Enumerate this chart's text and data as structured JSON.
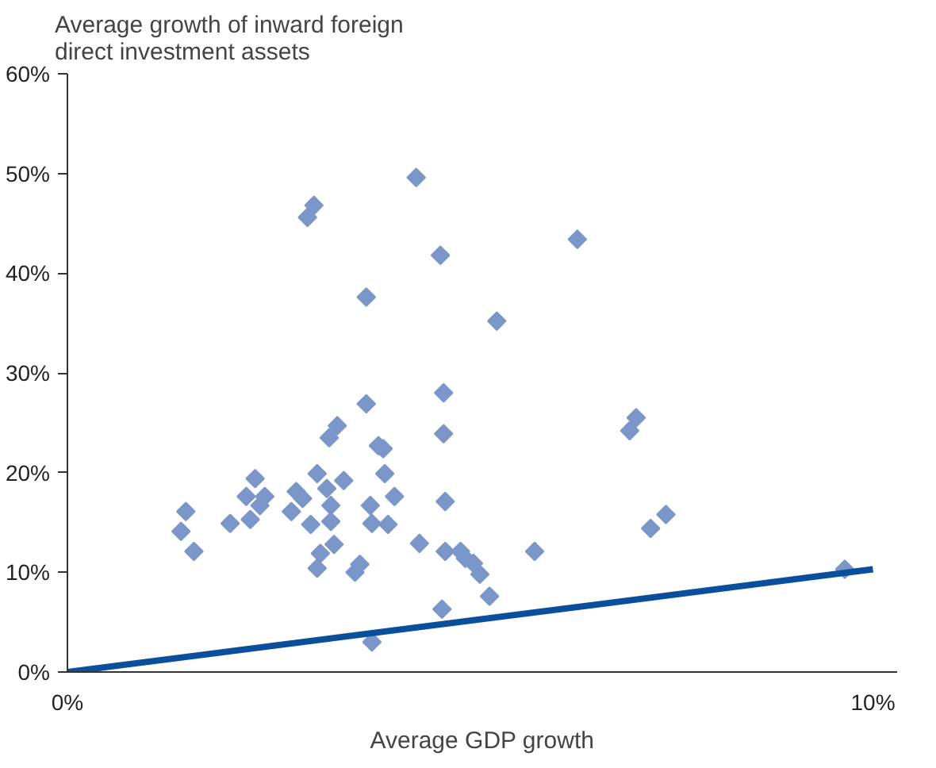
{
  "chart_data": {
    "type": "scatter",
    "ylabel": "Average growth of inward foreign direct investment assets",
    "xlabel": "Average GDP growth",
    "grid": false,
    "xlim": [
      0,
      10.3
    ],
    "ylim": [
      0,
      60
    ],
    "xticks": [
      {
        "value": 0,
        "label": "0%"
      },
      {
        "value": 10,
        "label": "10%"
      }
    ],
    "yticks": [
      {
        "value": 0,
        "label": "0%"
      },
      {
        "value": 10,
        "label": "10%"
      },
      {
        "value": 20,
        "label": "20%"
      },
      {
        "value": 30,
        "label": "30%"
      },
      {
        "value": 40,
        "label": "40%"
      },
      {
        "value": 50,
        "label": "50%"
      },
      {
        "value": 60,
        "label": "60%"
      }
    ],
    "series": [
      {
        "marker": "diamond",
        "color": "#7b96c8",
        "x": [
          1.41,
          1.47,
          1.57,
          2.02,
          2.22,
          2.27,
          2.33,
          2.39,
          2.45,
          2.78,
          2.84,
          2.92,
          2.98,
          3.06,
          3.02,
          3.1,
          3.1,
          3.14,
          3.22,
          3.25,
          3.27,
          3.27,
          3.31,
          3.35,
          3.43,
          3.57,
          3.63,
          3.71,
          3.71,
          3.76,
          3.78,
          3.78,
          3.86,
          3.92,
          3.94,
          3.98,
          4.06,
          4.33,
          4.37,
          4.63,
          4.65,
          4.67,
          4.67,
          4.69,
          4.69,
          4.88,
          4.94,
          5.04,
          5.12,
          5.24,
          5.33,
          5.8,
          6.33,
          6.98,
          7.06,
          7.24,
          7.43,
          9.65
        ],
        "values": [
          14.1,
          16.1,
          12.1,
          14.9,
          17.6,
          15.3,
          19.4,
          16.7,
          17.6,
          16.1,
          18.1,
          17.4,
          45.6,
          46.8,
          14.8,
          19.9,
          10.4,
          11.9,
          18.4,
          23.5,
          16.7,
          15.1,
          12.8,
          24.7,
          19.2,
          10.0,
          10.8,
          37.6,
          26.9,
          16.7,
          3.0,
          14.9,
          22.7,
          22.4,
          19.9,
          14.8,
          17.6,
          49.6,
          12.9,
          41.8,
          6.3,
          28.0,
          23.9,
          17.1,
          12.1,
          12.1,
          11.4,
          10.9,
          9.8,
          7.6,
          35.2,
          12.1,
          43.4,
          24.2,
          25.5,
          14.4,
          15.8,
          10.3
        ]
      },
      {
        "type": "line",
        "color": "#0b4f9c",
        "x": [
          0,
          10
        ],
        "values": [
          0,
          10.3
        ]
      }
    ]
  }
}
